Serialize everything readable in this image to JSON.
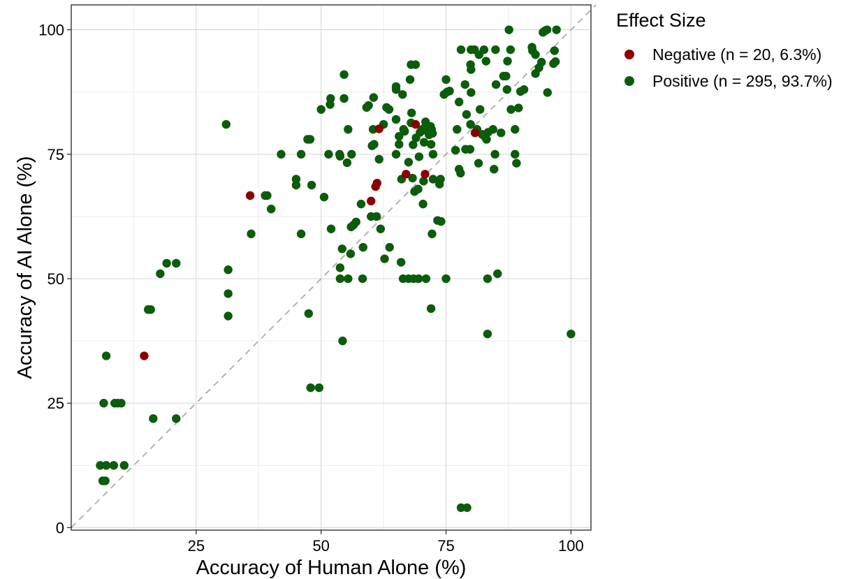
{
  "chart_data": {
    "type": "scatter",
    "xlabel": "Accuracy of Human Alone (%)",
    "ylabel": "Accuracy of AI Alone (%)",
    "xlim": [
      0,
      104
    ],
    "ylim": [
      -0.5,
      105
    ],
    "xticks": [
      25,
      50,
      75,
      100
    ],
    "yticks": [
      0,
      25,
      50,
      75,
      100
    ],
    "grid": true,
    "reference_line": {
      "style": "dashed",
      "from": [
        0,
        0
      ],
      "to": [
        105,
        105
      ],
      "color": "#b3b3b3"
    },
    "legend": {
      "title": "Effect Size",
      "placement": "right"
    },
    "series": [
      {
        "name": "Negative (n = 20, 6.3%)",
        "color": "#8b0000",
        "points": [
          [
            14.6,
            34.5
          ],
          [
            35.8,
            66.7
          ],
          [
            60.0,
            65.6
          ],
          [
            60.9,
            68.5
          ],
          [
            61.2,
            69.2
          ],
          [
            61.6,
            80.1
          ],
          [
            67.0,
            71.0
          ],
          [
            68.9,
            81.0
          ],
          [
            70.8,
            71.0
          ],
          [
            80.8,
            79.3
          ]
        ]
      },
      {
        "name": "Positive (n = 295, 93.7%)",
        "color": "#0b5c0b",
        "points": [
          [
            5.8,
            12.5
          ],
          [
            7.0,
            12.5
          ],
          [
            8.5,
            12.5
          ],
          [
            10.6,
            12.5
          ],
          [
            6.3,
            9.4
          ],
          [
            6.8,
            9.4
          ],
          [
            6.5,
            25.0
          ],
          [
            8.7,
            25.0
          ],
          [
            9.3,
            25.0
          ],
          [
            10.0,
            25.0
          ],
          [
            7.0,
            34.5
          ],
          [
            16.4,
            21.9
          ],
          [
            21.0,
            21.9
          ],
          [
            15.4,
            43.8
          ],
          [
            15.9,
            43.8
          ],
          [
            17.8,
            51.0
          ],
          [
            19.1,
            53.1
          ],
          [
            21.0,
            53.1
          ],
          [
            31.4,
            42.5
          ],
          [
            31.4,
            47.0
          ],
          [
            31.4,
            51.8
          ],
          [
            31.0,
            81.0
          ],
          [
            36.0,
            59.0
          ],
          [
            38.8,
            66.7
          ],
          [
            39.2,
            66.7
          ],
          [
            40.0,
            64.0
          ],
          [
            42.0,
            75.0
          ],
          [
            45.0,
            70.0
          ],
          [
            45.0,
            68.8
          ],
          [
            46.0,
            75.0
          ],
          [
            46.0,
            59.0
          ],
          [
            47.3,
            78.0
          ],
          [
            47.8,
            78.0
          ],
          [
            48.1,
            68.8
          ],
          [
            47.5,
            43.0
          ],
          [
            47.9,
            28.1
          ],
          [
            49.6,
            28.1
          ],
          [
            50.0,
            84.0
          ],
          [
            50.6,
            66.4
          ],
          [
            51.5,
            75.0
          ],
          [
            52.0,
            60.0
          ],
          [
            51.8,
            85.0
          ],
          [
            51.9,
            86.2
          ],
          [
            53.8,
            74.6
          ],
          [
            53.7,
            75.0
          ],
          [
            53.8,
            52.2
          ],
          [
            53.8,
            50.0
          ],
          [
            54.2,
            56.0
          ],
          [
            54.6,
            86.2
          ],
          [
            54.6,
            91.0
          ],
          [
            54.3,
            37.5
          ],
          [
            55.2,
            73.3
          ],
          [
            55.4,
            80.0
          ],
          [
            55.4,
            50.0
          ],
          [
            55.9,
            55.0
          ],
          [
            56.1,
            75.0
          ],
          [
            56.0,
            60.4
          ],
          [
            56.5,
            60.8
          ],
          [
            57.0,
            61.4
          ],
          [
            58.0,
            65.0
          ],
          [
            58.4,
            56.3
          ],
          [
            58.3,
            50.0
          ],
          [
            59.1,
            84.4
          ],
          [
            59.5,
            84.8
          ],
          [
            60.0,
            62.5
          ],
          [
            60.2,
            76.7
          ],
          [
            60.4,
            80.0
          ],
          [
            60.5,
            86.4
          ],
          [
            60.6,
            77.0
          ],
          [
            61.1,
            62.5
          ],
          [
            61.6,
            74.0
          ],
          [
            61.9,
            60.0
          ],
          [
            62.5,
            81.0
          ],
          [
            62.7,
            54.0
          ],
          [
            63.1,
            84.4
          ],
          [
            63.6,
            84.0
          ],
          [
            63.7,
            56.3
          ],
          [
            65.0,
            88.0
          ],
          [
            65.0,
            88.6
          ],
          [
            65.0,
            82.0
          ],
          [
            65.0,
            75.0
          ],
          [
            65.6,
            77.0
          ],
          [
            65.6,
            78.6
          ],
          [
            66.1,
            70.0
          ],
          [
            66.3,
            87.0
          ],
          [
            66.5,
            80.0
          ],
          [
            66.0,
            53.3
          ],
          [
            66.4,
            50.0
          ],
          [
            66.7,
            79.6
          ],
          [
            67.5,
            50.0
          ],
          [
            67.5,
            73.4
          ],
          [
            67.8,
            90.0
          ],
          [
            68.0,
            81.3
          ],
          [
            68.0,
            93.0
          ],
          [
            68.1,
            83.3
          ],
          [
            68.3,
            70.2
          ],
          [
            68.4,
            76.9
          ],
          [
            68.5,
            50.0
          ],
          [
            68.9,
            93.0
          ],
          [
            68.7,
            67.5
          ],
          [
            69.0,
            78.3
          ],
          [
            69.5,
            50.0
          ],
          [
            69.4,
            68.0
          ],
          [
            69.6,
            74.5
          ],
          [
            69.8,
            79.4
          ],
          [
            70.2,
            80.0
          ],
          [
            70.4,
            65.0
          ],
          [
            70.5,
            69.6
          ],
          [
            70.6,
            77.4
          ],
          [
            70.8,
            80.4
          ],
          [
            70.9,
            81.5
          ],
          [
            71.0,
            50.0
          ],
          [
            71.3,
            79.6
          ],
          [
            71.6,
            78.9
          ],
          [
            71.9,
            80.6
          ],
          [
            72.0,
            77.0
          ],
          [
            72.1,
            80.0
          ],
          [
            72.2,
            59.0
          ],
          [
            72.0,
            44.0
          ],
          [
            72.3,
            79.2
          ],
          [
            72.4,
            75.0
          ],
          [
            72.4,
            70.0
          ],
          [
            73.3,
            61.7
          ],
          [
            73.7,
            69.0
          ],
          [
            73.9,
            70.0
          ],
          [
            74.0,
            61.5
          ],
          [
            75.0,
            50.0
          ],
          [
            74.6,
            87.0
          ],
          [
            75.2,
            87.5
          ],
          [
            75.0,
            90.0
          ],
          [
            75.7,
            87.7
          ],
          [
            76.9,
            75.8
          ],
          [
            77.2,
            80.0
          ],
          [
            77.6,
            72.0
          ],
          [
            77.9,
            71.2
          ],
          [
            77.6,
            85.5
          ],
          [
            78.0,
            96.0
          ],
          [
            78.0,
            4.0
          ],
          [
            79.2,
            4.0
          ],
          [
            78.8,
            89.0
          ],
          [
            78.9,
            76.0
          ],
          [
            79.1,
            83.0
          ],
          [
            79.8,
            76.0
          ],
          [
            79.9,
            81.0
          ],
          [
            80.0,
            92.0
          ],
          [
            79.9,
            93.0
          ],
          [
            80.0,
            87.4
          ],
          [
            80.0,
            96.0
          ],
          [
            80.7,
            96.0
          ],
          [
            81.2,
            80.0
          ],
          [
            81.5,
            73.2
          ],
          [
            81.6,
            95.0
          ],
          [
            81.8,
            84.0
          ],
          [
            82.2,
            79.0
          ],
          [
            82.6,
            96.0
          ],
          [
            82.8,
            78.5
          ],
          [
            83.1,
            78.0
          ],
          [
            83.0,
            93.7
          ],
          [
            83.4,
            79.4
          ],
          [
            83.3,
            50.0
          ],
          [
            83.3,
            38.9
          ],
          [
            84.4,
            80.0
          ],
          [
            84.6,
            72.0
          ],
          [
            84.8,
            75.0
          ],
          [
            84.9,
            96.0
          ],
          [
            85.0,
            89.0
          ],
          [
            85.3,
            51.0
          ],
          [
            86.0,
            79.3
          ],
          [
            86.5,
            90.7
          ],
          [
            87.0,
            90.7
          ],
          [
            87.2,
            88.0
          ],
          [
            87.3,
            93.7
          ],
          [
            87.6,
            100.0
          ],
          [
            87.9,
            96.0
          ],
          [
            88.0,
            84.0
          ],
          [
            88.8,
            80.0
          ],
          [
            88.8,
            75.0
          ],
          [
            89.1,
            73.2
          ],
          [
            89.5,
            84.3
          ],
          [
            89.9,
            87.6
          ],
          [
            90.6,
            88.0
          ],
          [
            92.2,
            96.5
          ],
          [
            92.3,
            95.8
          ],
          [
            92.9,
            91.2
          ],
          [
            92.9,
            95.0
          ],
          [
            93.6,
            92.4
          ],
          [
            94.1,
            93.5
          ],
          [
            94.4,
            99.5
          ],
          [
            94.8,
            99.8
          ],
          [
            95.2,
            100.0
          ],
          [
            95.3,
            87.4
          ],
          [
            96.5,
            93.2
          ],
          [
            96.7,
            95.8
          ],
          [
            96.9,
            93.6
          ],
          [
            97.1,
            100.0
          ],
          [
            100.0,
            38.9
          ]
        ]
      }
    ]
  }
}
